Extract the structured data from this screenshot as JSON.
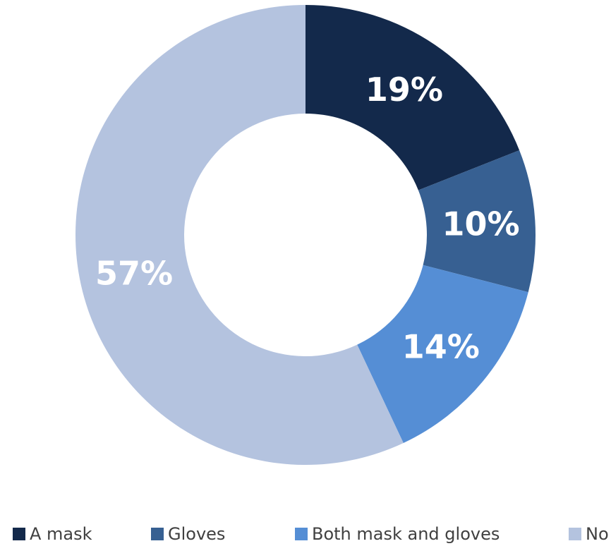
{
  "chart_data": {
    "type": "pie",
    "donut": true,
    "legend_position": "bottom",
    "slices": [
      {
        "label": "A mask",
        "value": 19,
        "display": "19%",
        "color": "#13294B"
      },
      {
        "label": "Gloves",
        "value": 10,
        "display": "10%",
        "color": "#376092"
      },
      {
        "label": "Both mask and gloves",
        "value": 14,
        "display": "14%",
        "color": "#558ED5"
      },
      {
        "label": "No",
        "value": 57,
        "display": "57%",
        "color": "#B4C3DF"
      }
    ]
  }
}
